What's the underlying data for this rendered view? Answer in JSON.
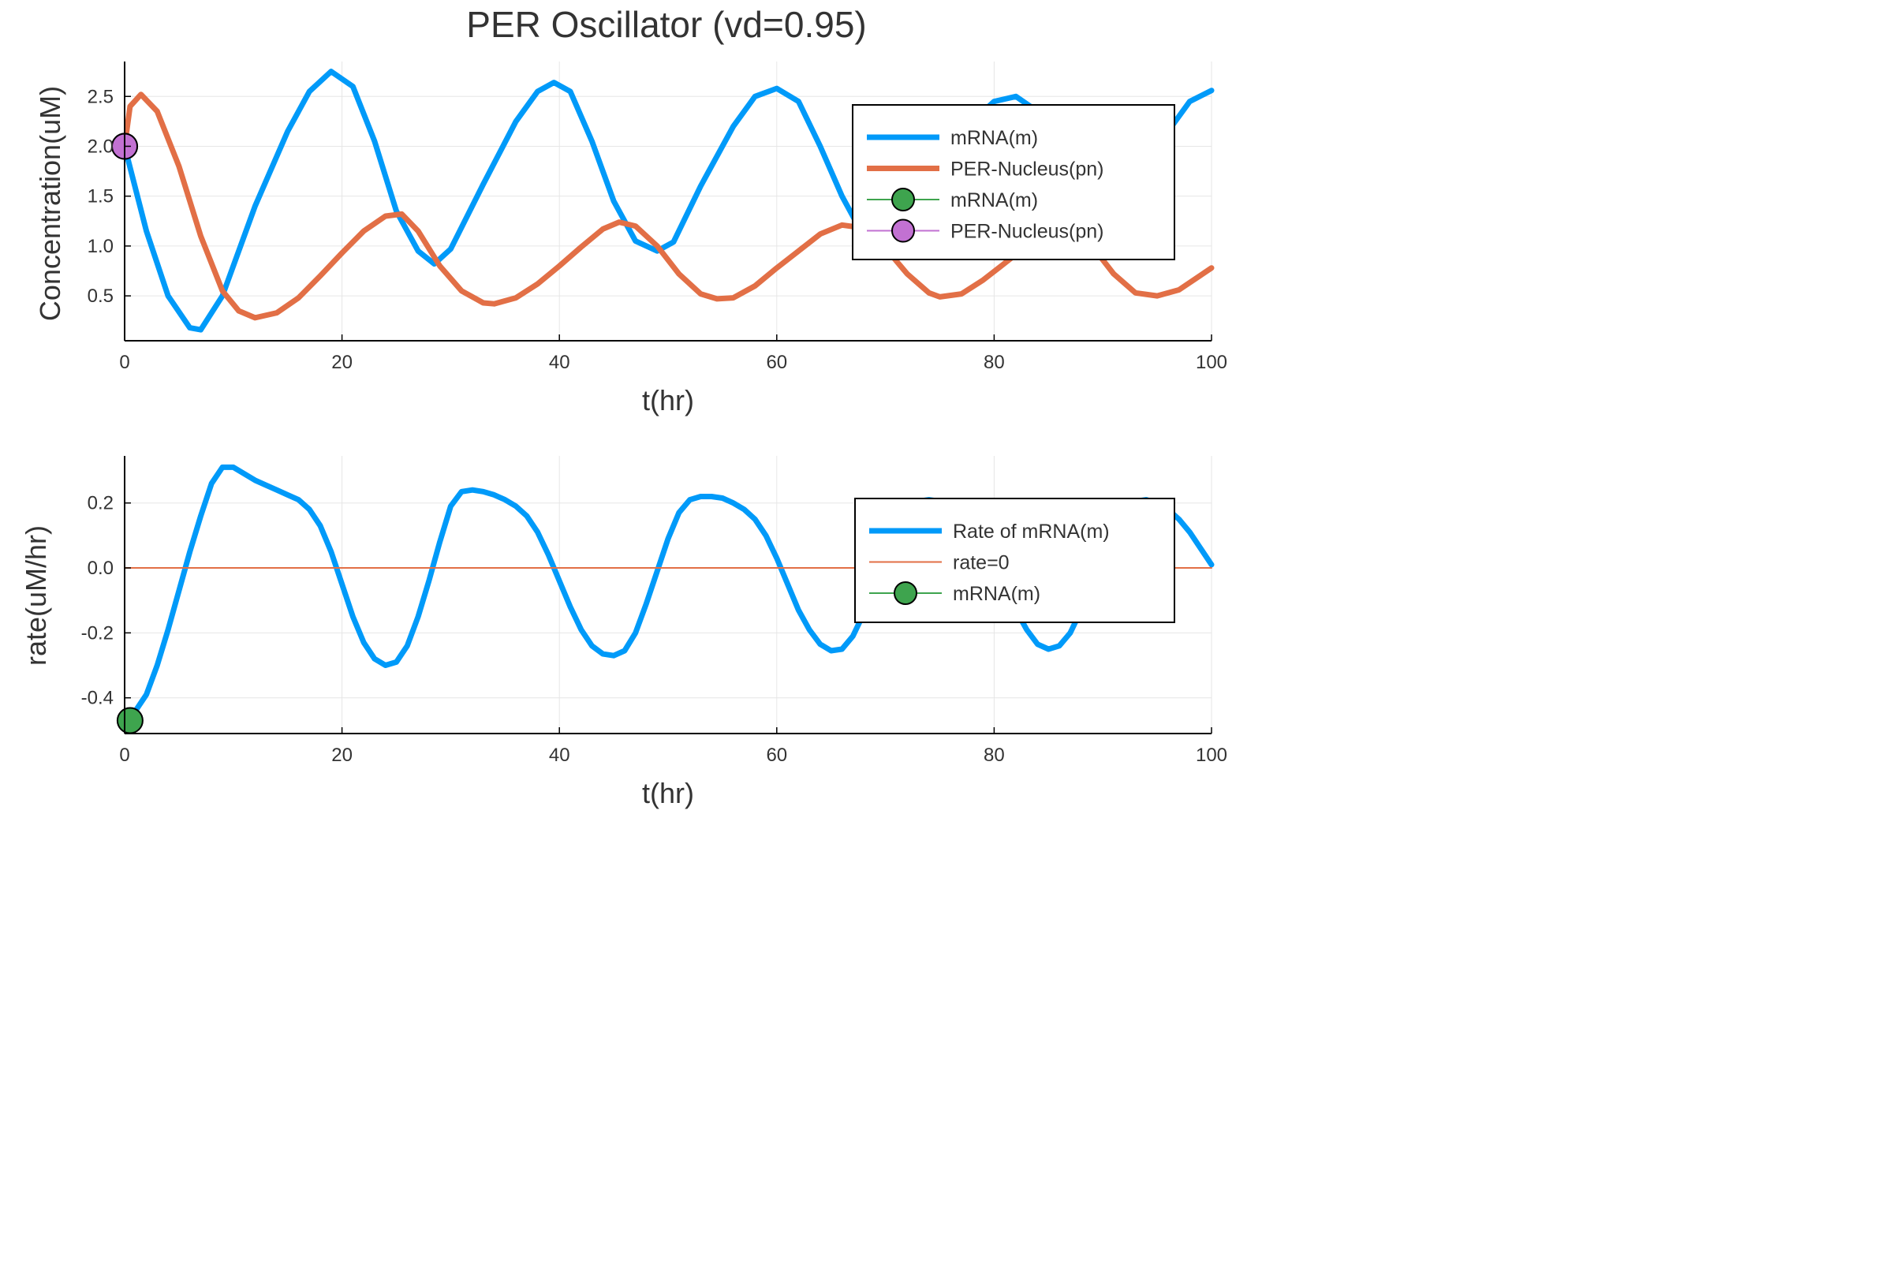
{
  "figure": {
    "title": "PER Oscillator (vd=0.95)"
  },
  "colors": {
    "blue": "#009AF9",
    "orange": "#E26F46",
    "green": "#3EA44E",
    "purple": "#C271D2",
    "axis": "#000000",
    "text": "#333333",
    "grid": "#e6e6e6"
  },
  "chart_data": [
    {
      "type": "line",
      "xlabel": "t(hr)",
      "ylabel": "Concentration(uM)",
      "xlim": [
        0,
        100
      ],
      "ylim": [
        0.05,
        2.85
      ],
      "xticks": [
        0,
        20,
        40,
        60,
        80,
        100
      ],
      "xtick_labels": [
        "0",
        "20",
        "40",
        "60",
        "80",
        "100"
      ],
      "yticks": [
        0.5,
        1.0,
        1.5,
        2.0,
        2.5
      ],
      "ytick_labels": [
        "0.5",
        "1.0",
        "1.5",
        "2.0",
        "2.5"
      ],
      "grid": true,
      "legend_position": "top-right",
      "series": [
        {
          "name": "mRNA(m)",
          "style": "line",
          "color": "#009AF9",
          "x": [
            0,
            2,
            4,
            6,
            7,
            9,
            12,
            15,
            17,
            19,
            21,
            23,
            25,
            27,
            28.5,
            30,
            33,
            36,
            38,
            39.5,
            41,
            43,
            45,
            47,
            49,
            50.5,
            53,
            56,
            58,
            60,
            62,
            64,
            66,
            68,
            70,
            72,
            75,
            78,
            80,
            82,
            84,
            86,
            88,
            90,
            93,
            96,
            98,
            100
          ],
          "y": [
            2.0,
            1.15,
            0.5,
            0.18,
            0.16,
            0.5,
            1.4,
            2.15,
            2.55,
            2.75,
            2.6,
            2.05,
            1.35,
            0.95,
            0.82,
            0.97,
            1.62,
            2.25,
            2.55,
            2.64,
            2.55,
            2.05,
            1.45,
            1.05,
            0.95,
            1.04,
            1.6,
            2.2,
            2.5,
            2.58,
            2.45,
            2.0,
            1.5,
            1.1,
            0.98,
            1.1,
            1.7,
            2.25,
            2.45,
            2.5,
            2.35,
            1.95,
            1.5,
            1.15,
            1.5,
            2.15,
            2.45,
            2.56
          ]
        },
        {
          "name": "PER-Nucleus(pn)",
          "style": "line",
          "color": "#E26F46",
          "x": [
            0,
            0.5,
            1.5,
            3,
            5,
            7,
            9,
            10.5,
            12,
            14,
            16,
            18,
            20,
            22,
            24,
            25.5,
            27,
            29,
            31,
            33,
            34,
            36,
            38,
            40,
            42,
            44,
            45.5,
            47,
            49,
            51,
            53,
            54.5,
            56,
            58,
            60,
            62,
            64,
            66,
            68,
            70,
            72,
            74,
            75,
            77,
            79,
            81,
            83,
            85,
            87,
            89,
            91,
            93,
            95,
            97,
            100
          ],
          "y": [
            2.0,
            2.4,
            2.52,
            2.35,
            1.8,
            1.1,
            0.55,
            0.35,
            0.28,
            0.33,
            0.48,
            0.7,
            0.93,
            1.15,
            1.3,
            1.32,
            1.15,
            0.8,
            0.55,
            0.43,
            0.42,
            0.48,
            0.62,
            0.8,
            0.99,
            1.17,
            1.24,
            1.2,
            1.0,
            0.72,
            0.52,
            0.47,
            0.48,
            0.6,
            0.78,
            0.95,
            1.12,
            1.21,
            1.18,
            0.98,
            0.72,
            0.53,
            0.49,
            0.52,
            0.66,
            0.83,
            1.0,
            1.13,
            1.15,
            1.0,
            0.72,
            0.53,
            0.5,
            0.56,
            0.78
          ]
        },
        {
          "name": "mRNA(m)",
          "style": "marker",
          "color": "#3EA44E",
          "x": [
            0
          ],
          "y": [
            2.0
          ]
        },
        {
          "name": "PER-Nucleus(pn)",
          "style": "marker",
          "color": "#C271D2",
          "x": [
            0
          ],
          "y": [
            2.0
          ]
        }
      ]
    },
    {
      "type": "line",
      "xlabel": "t(hr)",
      "ylabel": "rate(uM/hr)",
      "xlim": [
        0,
        100
      ],
      "ylim": [
        -0.51,
        0.345
      ],
      "xticks": [
        0,
        20,
        40,
        60,
        80,
        100
      ],
      "xtick_labels": [
        "0",
        "20",
        "40",
        "60",
        "80",
        "100"
      ],
      "yticks": [
        -0.4,
        -0.2,
        0.0,
        0.2
      ],
      "ytick_labels": [
        "-0.4",
        "-0.2",
        "0.0",
        "0.2"
      ],
      "grid": true,
      "legend_position": "top-right",
      "series": [
        {
          "name": "Rate of mRNA(m)",
          "style": "line",
          "color": "#009AF9",
          "x": [
            0,
            1,
            2,
            3,
            4,
            5,
            6,
            7,
            8,
            9,
            10,
            11,
            12,
            13,
            14,
            15,
            16,
            17,
            18,
            19,
            20,
            21,
            22,
            23,
            24,
            25,
            26,
            27,
            28,
            29,
            30,
            31,
            32,
            33,
            34,
            35,
            36,
            37,
            38,
            39,
            40,
            41,
            42,
            43,
            44,
            45,
            46,
            47,
            48,
            49,
            50,
            51,
            52,
            53,
            54,
            55,
            56,
            57,
            58,
            59,
            60,
            61,
            62,
            63,
            64,
            65,
            66,
            67,
            68,
            69,
            70,
            71,
            72,
            73,
            74,
            75,
            76,
            77,
            78,
            79,
            80,
            81,
            82,
            83,
            84,
            85,
            86,
            87,
            88,
            89,
            90,
            91,
            92,
            93,
            94,
            95,
            96,
            97,
            98,
            99,
            100
          ],
          "y": [
            -0.47,
            -0.44,
            -0.39,
            -0.3,
            -0.19,
            -0.07,
            0.05,
            0.16,
            0.26,
            0.31,
            0.31,
            0.29,
            0.27,
            0.255,
            0.24,
            0.225,
            0.21,
            0.18,
            0.13,
            0.05,
            -0.05,
            -0.15,
            -0.23,
            -0.28,
            -0.3,
            -0.29,
            -0.24,
            -0.15,
            -0.04,
            0.08,
            0.19,
            0.235,
            0.24,
            0.235,
            0.225,
            0.21,
            0.19,
            0.16,
            0.11,
            0.04,
            -0.04,
            -0.12,
            -0.19,
            -0.24,
            -0.265,
            -0.27,
            -0.255,
            -0.2,
            -0.11,
            -0.01,
            0.09,
            0.17,
            0.21,
            0.22,
            0.22,
            0.215,
            0.2,
            0.18,
            0.15,
            0.1,
            0.03,
            -0.05,
            -0.13,
            -0.19,
            -0.235,
            -0.255,
            -0.25,
            -0.21,
            -0.14,
            -0.05,
            0.04,
            0.12,
            0.18,
            0.205,
            0.21,
            0.205,
            0.19,
            0.17,
            0.14,
            0.09,
            0.02,
            -0.06,
            -0.13,
            -0.19,
            -0.235,
            -0.25,
            -0.24,
            -0.2,
            -0.13,
            -0.04,
            0.05,
            0.13,
            0.18,
            0.205,
            0.21,
            0.2,
            0.18,
            0.15,
            0.11,
            0.06,
            0.01
          ]
        },
        {
          "name": "rate=0",
          "style": "thin-line",
          "color": "#E26F46",
          "x": [
            0,
            100
          ],
          "y": [
            0,
            0
          ]
        },
        {
          "name": "mRNA(m)",
          "style": "marker",
          "color": "#3EA44E",
          "x": [
            0.5
          ],
          "y": [
            -0.47
          ]
        }
      ]
    }
  ]
}
